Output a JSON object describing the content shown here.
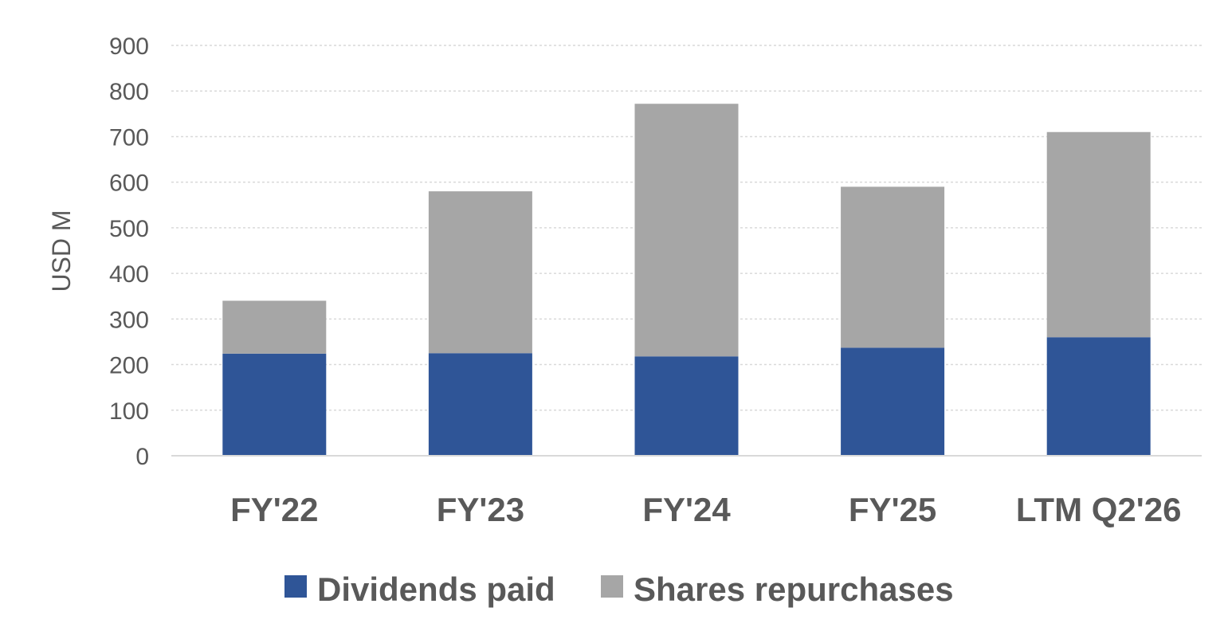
{
  "chart_data": {
    "type": "bar",
    "stacked": true,
    "title": "",
    "xlabel": "",
    "ylabel": "USD M",
    "ylim": [
      0,
      900
    ],
    "yticks": [
      0,
      100,
      200,
      300,
      400,
      500,
      600,
      700,
      800,
      900
    ],
    "grid": true,
    "legend_position": "bottom",
    "categories": [
      "FY'22",
      "FY'23",
      "FY'24",
      "FY'25",
      "LTM Q2'26"
    ],
    "series": [
      {
        "name": "Dividends paid",
        "color": "#2F5597",
        "values": [
          224,
          225,
          218,
          237,
          260
        ]
      },
      {
        "name": "Shares repurchases",
        "color": "#A6A6A6",
        "values": [
          116,
          355,
          554,
          353,
          450
        ]
      }
    ]
  }
}
